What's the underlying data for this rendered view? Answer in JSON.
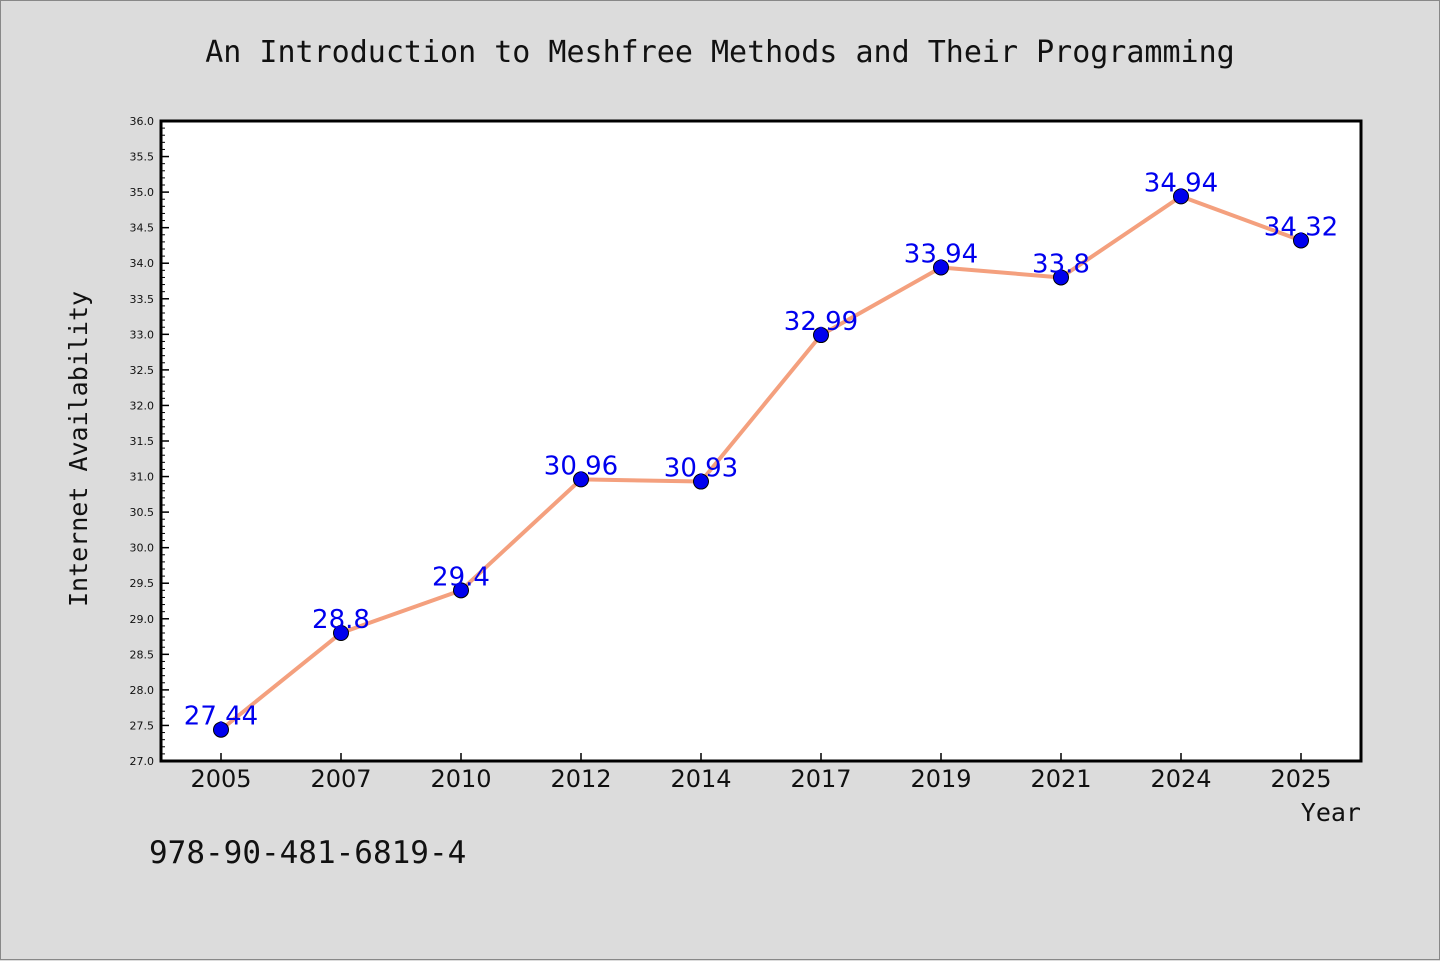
{
  "chart_data": {
    "type": "line",
    "title": "An Introduction to Meshfree Methods and Their Programming",
    "xlabel": "Year",
    "ylabel": "Internet Availability",
    "categories": [
      "2005",
      "2007",
      "2010",
      "2012",
      "2014",
      "2017",
      "2019",
      "2021",
      "2024",
      "2025"
    ],
    "series": [
      {
        "values": [
          27.44,
          28.8,
          29.4,
          30.96,
          30.93,
          32.99,
          33.94,
          33.8,
          34.94,
          34.32
        ],
        "labels": [
          "27.44",
          "28.8",
          "29.4",
          "30.96",
          "30.93",
          "32.99",
          "33.94",
          "33.8",
          "34.94",
          "34.32"
        ],
        "line_color": "#f4a07e",
        "marker_color": "#0000ee"
      }
    ],
    "ylim": [
      27.0,
      36.0
    ],
    "yticks": [
      "27.0",
      "27.5",
      "28.0",
      "28.5",
      "29.0",
      "29.5",
      "30.0",
      "30.5",
      "31.0",
      "31.5",
      "32.0",
      "32.5",
      "33.0",
      "33.5",
      "34.0",
      "34.5",
      "35.0",
      "35.5",
      "36.0"
    ],
    "grid": false,
    "legend": "none",
    "label_color": "#0000ee"
  },
  "footer": {
    "code": "978-90-481-6819-4"
  }
}
